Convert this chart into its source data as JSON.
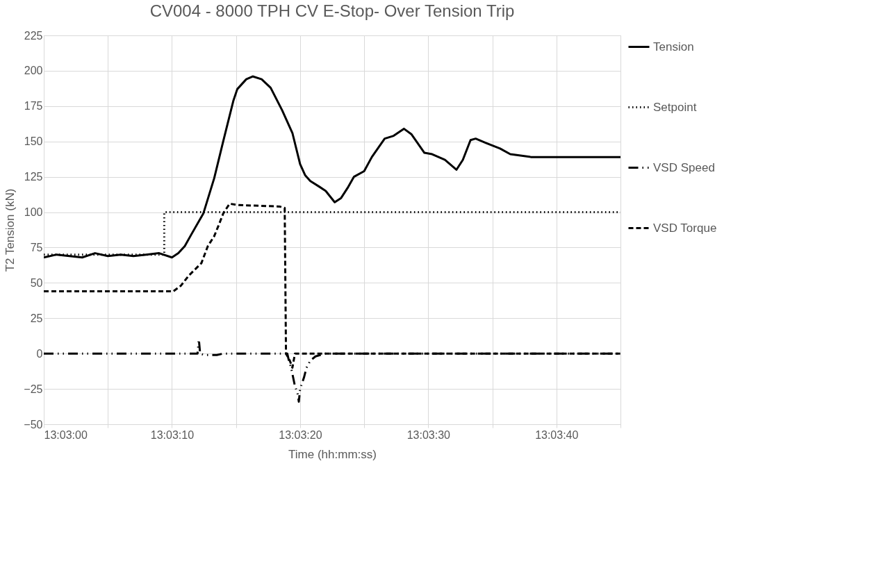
{
  "chart_data": {
    "type": "line",
    "title": "CV004 - 8000 TPH CV E-Stop- Over Tension Trip",
    "xlabel": "Time (hh:mm:ss)",
    "ylabel": "T2 Tension (kN)",
    "xlim": [
      13.05,
      13.0625
    ],
    "ylim": [
      -50,
      225
    ],
    "xticks": [
      {
        "value": 13.05,
        "label": "13:03:00"
      },
      {
        "value": 13.051389,
        "label": null
      },
      {
        "value": 13.052778,
        "label": "13:03:10"
      },
      {
        "value": 13.054167,
        "label": null
      },
      {
        "value": 13.055556,
        "label": "13:03:20"
      },
      {
        "value": 13.056944,
        "label": null
      },
      {
        "value": 13.058333,
        "label": "13:03:30"
      },
      {
        "value": 13.059722,
        "label": null
      },
      {
        "value": 13.061111,
        "label": "13:03:40"
      },
      {
        "value": 13.0625,
        "label": null
      }
    ],
    "yticks": [
      -50,
      -25,
      0,
      25,
      50,
      75,
      100,
      125,
      150,
      175,
      200,
      225
    ],
    "grid": true,
    "legend": "right",
    "marker": "none",
    "series": [
      {
        "name": "Tension",
        "color": "#000000",
        "line_style": "solid",
        "x": [
          13.05,
          13.050278,
          13.050556,
          13.050833,
          13.051111,
          13.051389,
          13.051667,
          13.051944,
          13.052222,
          13.0525,
          13.052778,
          13.052917,
          13.053056,
          13.053194,
          13.053458,
          13.053694,
          13.053889,
          13.054111,
          13.054194,
          13.054389,
          13.054528,
          13.054722,
          13.054917,
          13.055167,
          13.055389,
          13.055556,
          13.055667,
          13.055778,
          13.055972,
          13.056111,
          13.056306,
          13.056444,
          13.056583,
          13.056722,
          13.056944,
          13.057111,
          13.057389,
          13.057583,
          13.057806,
          13.057972,
          13.05825,
          13.058417,
          13.058694,
          13.058944,
          13.059083,
          13.05925,
          13.059361,
          13.059583,
          13.059889,
          13.060111,
          13.060333,
          13.060556,
          13.0625
        ],
        "values": [
          68,
          70,
          69,
          68,
          71,
          69,
          70,
          69,
          70,
          71,
          68,
          71,
          76,
          84,
          99,
          124,
          150,
          179,
          187,
          194,
          196,
          194,
          188,
          172,
          156,
          134,
          126,
          122,
          118,
          115,
          107,
          110,
          117,
          125,
          129,
          139,
          152,
          154,
          159,
          155,
          142,
          141,
          137,
          130,
          137,
          151,
          152,
          149,
          145,
          141,
          140,
          139,
          139
        ]
      },
      {
        "name": "Setpoint",
        "color": "#000000",
        "line_style": "dotted",
        "x": [
          13.05,
          13.052611,
          13.052611,
          13.0625
        ],
        "values": [
          70,
          70,
          100,
          100
        ]
      },
      {
        "name": "VSD Speed",
        "color": "#000000",
        "line_style": "dashdot",
        "x": [
          13.05,
          13.053333,
          13.053361,
          13.053389,
          13.053472,
          13.05375,
          13.053889,
          13.055278,
          13.055306,
          13.055361,
          13.055444,
          13.0555,
          13.055528,
          13.055556,
          13.055639,
          13.055694,
          13.055778,
          13.055889,
          13.056111,
          13.0625
        ],
        "values": [
          0,
          0,
          10,
          0,
          -1,
          -1,
          0,
          0,
          -4,
          -10,
          -23,
          -28,
          -34,
          -25,
          -17,
          -10,
          -5,
          -2,
          0,
          0
        ]
      },
      {
        "name": "VSD Torque",
        "color": "#000000",
        "line_style": "dashed",
        "x": [
          13.05,
          13.052806,
          13.052972,
          13.053139,
          13.053417,
          13.053556,
          13.053694,
          13.053806,
          13.053889,
          13.054028,
          13.054222,
          13.055111,
          13.055222,
          13.05525,
          13.055333,
          13.055389,
          13.055444,
          13.0625
        ],
        "values": [
          44,
          44,
          48,
          55,
          64,
          76,
          83,
          92,
          99,
          106,
          105,
          104,
          103,
          0,
          -5,
          -10,
          0,
          0
        ]
      }
    ]
  }
}
